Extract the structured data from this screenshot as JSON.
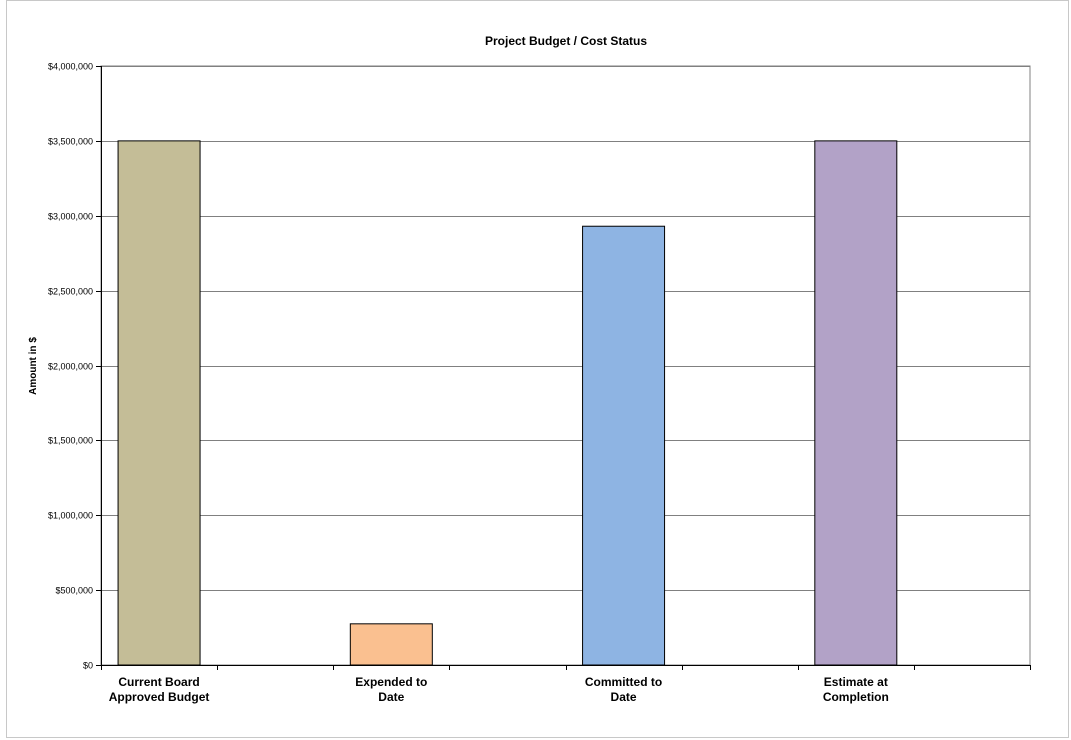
{
  "chart_data": {
    "type": "bar",
    "title": "Project Budget / Cost Status",
    "xlabel": "",
    "ylabel": "Amount in $",
    "categories": [
      [
        "Current Board",
        "Approved Budget"
      ],
      [
        "Expended  to",
        "Date"
      ],
      [
        "Committed to",
        "Date"
      ],
      [
        "Estimate at",
        "Completion"
      ]
    ],
    "values": [
      3500000,
      275000,
      2930000,
      3500000
    ],
    "colors": [
      "#C4BD97",
      "#FAC090",
      "#8EB4E3",
      "#B2A2C7"
    ],
    "ylim": [
      0,
      4000000
    ],
    "yticks": [
      0,
      500000,
      1000000,
      1500000,
      2000000,
      2500000,
      3000000,
      3500000,
      4000000
    ],
    "ytick_labels": [
      "$0",
      "$500,000",
      "$1,000,000",
      "$1,500,000",
      "$2,000,000",
      "$2,500,000",
      "$3,000,000",
      "$3,500,000",
      "$4,000,000"
    ],
    "grid": true,
    "legend": "none"
  }
}
